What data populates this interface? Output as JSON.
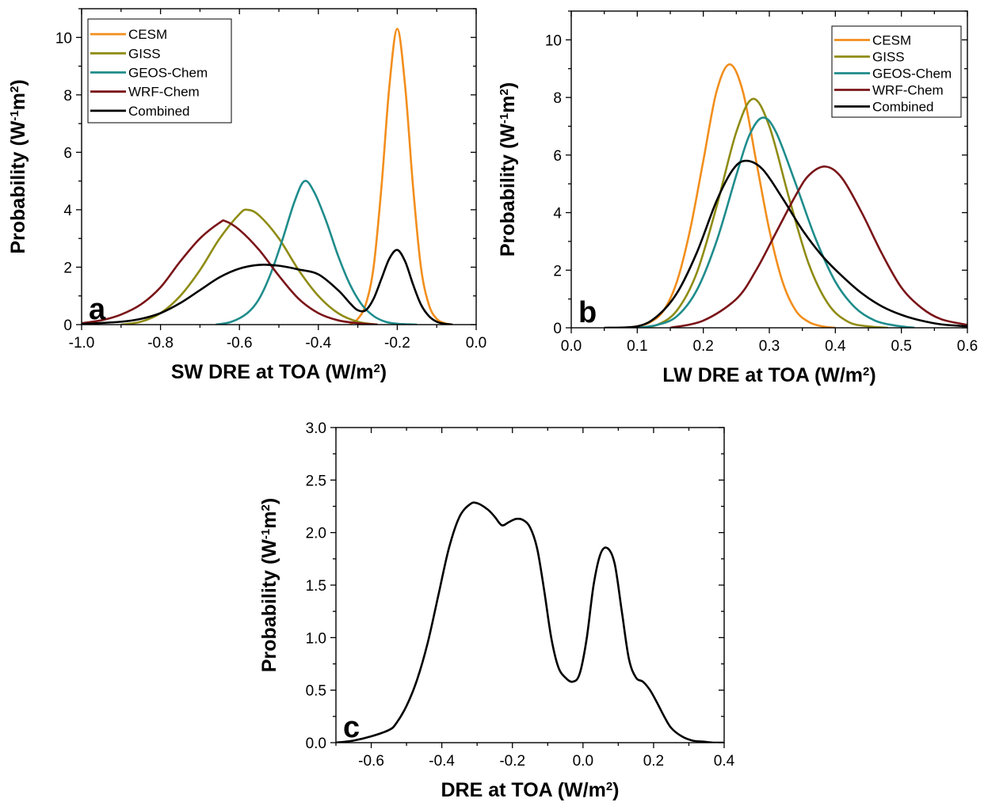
{
  "chart_data": [
    {
      "type": "line",
      "panel_label": "a",
      "xlabel": "SW DRE at TOA (W/m",
      "xlabel_sup": "2",
      "xlabel_end": ")",
      "ylabel": "Probability (W",
      "ylabel_sup1": "-1",
      "ylabel_mid": "m",
      "ylabel_sup2": "2",
      "ylabel_end": ")",
      "xlim": [
        -1.0,
        0.0
      ],
      "ylim": [
        0,
        11
      ],
      "xticks": [
        -1.0,
        -0.8,
        -0.6,
        -0.4,
        -0.2,
        0.0
      ],
      "xtick_labels": [
        "-1.0",
        "-0.8",
        "-0.6",
        "-0.4",
        "-0.2",
        "0.0"
      ],
      "yticks": [
        0,
        2,
        4,
        6,
        8,
        10
      ],
      "ytick_labels": [
        "0",
        "2",
        "4",
        "6",
        "8",
        "10"
      ],
      "legend_position": "top-left",
      "series": [
        {
          "name": "CESM",
          "color": "#f28e1c",
          "x": [
            -0.32,
            -0.3,
            -0.28,
            -0.26,
            -0.24,
            -0.22,
            -0.2,
            -0.18,
            -0.16,
            -0.14,
            -0.12,
            -0.1,
            -0.08,
            -0.06
          ],
          "y": [
            0,
            0.2,
            0.7,
            2.0,
            4.8,
            8.3,
            10.3,
            8.3,
            4.8,
            2.0,
            0.7,
            0.2,
            0.05,
            0
          ]
        },
        {
          "name": "GISS",
          "color": "#8f8c14",
          "x": [
            -0.9,
            -0.85,
            -0.8,
            -0.75,
            -0.7,
            -0.65,
            -0.6,
            -0.58,
            -0.55,
            -0.5,
            -0.45,
            -0.4,
            -0.35,
            -0.3,
            -0.25
          ],
          "y": [
            0,
            0.1,
            0.4,
            1.0,
            1.9,
            3.0,
            3.85,
            4.0,
            3.8,
            3.0,
            1.9,
            1.0,
            0.4,
            0.1,
            0
          ]
        },
        {
          "name": "GEOS-Chem",
          "color": "#1f8c8c",
          "x": [
            -0.66,
            -0.62,
            -0.58,
            -0.55,
            -0.52,
            -0.49,
            -0.46,
            -0.435,
            -0.41,
            -0.38,
            -0.35,
            -0.32,
            -0.29,
            -0.26,
            -0.23,
            -0.2,
            -0.17,
            -0.15
          ],
          "y": [
            0,
            0.1,
            0.4,
            0.9,
            1.8,
            3.0,
            4.3,
            5.0,
            4.6,
            3.6,
            2.4,
            1.4,
            0.7,
            0.3,
            0.1,
            0.03,
            0.01,
            0
          ]
        },
        {
          "name": "WRF-Chem",
          "color": "#7a1418",
          "x": [
            -1.0,
            -0.95,
            -0.9,
            -0.85,
            -0.8,
            -0.75,
            -0.7,
            -0.65,
            -0.635,
            -0.6,
            -0.55,
            -0.5,
            -0.45,
            -0.4,
            -0.35,
            -0.3,
            -0.25
          ],
          "y": [
            0.05,
            0.15,
            0.35,
            0.7,
            1.3,
            2.2,
            3.0,
            3.55,
            3.6,
            3.3,
            2.6,
            1.7,
            0.9,
            0.4,
            0.15,
            0.05,
            0
          ]
        },
        {
          "name": "Combined",
          "color": "#000000",
          "x": [
            -1.0,
            -0.9,
            -0.85,
            -0.8,
            -0.75,
            -0.7,
            -0.65,
            -0.6,
            -0.55,
            -0.5,
            -0.45,
            -0.4,
            -0.35,
            -0.32,
            -0.3,
            -0.28,
            -0.26,
            -0.24,
            -0.22,
            -0.2,
            -0.18,
            -0.16,
            -0.14,
            -0.12,
            -0.1,
            -0.08,
            -0.06
          ],
          "y": [
            0.02,
            0.1,
            0.2,
            0.4,
            0.75,
            1.2,
            1.65,
            1.95,
            2.08,
            2.05,
            1.92,
            1.75,
            1.2,
            0.75,
            0.5,
            0.5,
            0.9,
            1.6,
            2.3,
            2.6,
            2.2,
            1.4,
            0.7,
            0.3,
            0.1,
            0.03,
            0
          ]
        }
      ]
    },
    {
      "type": "line",
      "panel_label": "b",
      "xlabel": "LW DRE at TOA (W/m",
      "xlabel_sup": "2",
      "xlabel_end": ")",
      "ylabel": "Probability (W",
      "ylabel_sup1": "-1",
      "ylabel_mid": "m",
      "ylabel_sup2": "2",
      "ylabel_end": ")",
      "xlim": [
        0.0,
        0.6
      ],
      "ylim": [
        0,
        11
      ],
      "xticks": [
        0.0,
        0.1,
        0.2,
        0.3,
        0.4,
        0.5,
        0.6
      ],
      "xtick_labels": [
        "0.0",
        "0.1",
        "0.2",
        "0.3",
        "0.4",
        "0.5",
        "0.6"
      ],
      "yticks": [
        0,
        2,
        4,
        6,
        8,
        10
      ],
      "ytick_labels": [
        "0",
        "2",
        "4",
        "6",
        "8",
        "10"
      ],
      "legend_position": "top-right",
      "series": [
        {
          "name": "CESM",
          "color": "#f28e1c",
          "x": [
            0.08,
            0.1,
            0.12,
            0.14,
            0.16,
            0.18,
            0.2,
            0.22,
            0.24,
            0.26,
            0.28,
            0.3,
            0.32,
            0.34,
            0.36,
            0.38,
            0.4
          ],
          "y": [
            0,
            0.05,
            0.2,
            0.6,
            1.6,
            3.4,
            5.8,
            8.2,
            9.15,
            8.2,
            5.8,
            3.4,
            1.6,
            0.6,
            0.2,
            0.05,
            0
          ]
        },
        {
          "name": "GISS",
          "color": "#8f8c14",
          "x": [
            0.1,
            0.13,
            0.16,
            0.19,
            0.22,
            0.25,
            0.275,
            0.3,
            0.33,
            0.36,
            0.39,
            0.42,
            0.45,
            0.48
          ],
          "y": [
            0,
            0.1,
            0.6,
            1.9,
            4.2,
            6.8,
            7.95,
            7.0,
            4.5,
            2.2,
            0.8,
            0.2,
            0.05,
            0
          ]
        },
        {
          "name": "GEOS-Chem",
          "color": "#1f8c8c",
          "x": [
            0.1,
            0.13,
            0.16,
            0.19,
            0.22,
            0.25,
            0.27,
            0.29,
            0.31,
            0.34,
            0.37,
            0.4,
            0.43,
            0.46,
            0.49,
            0.52
          ],
          "y": [
            0,
            0.1,
            0.4,
            1.3,
            3.0,
            5.3,
            6.7,
            7.3,
            6.8,
            5.0,
            3.1,
            1.6,
            0.7,
            0.25,
            0.08,
            0
          ]
        },
        {
          "name": "WRF-Chem",
          "color": "#7a1418",
          "x": [
            0.15,
            0.2,
            0.25,
            0.28,
            0.31,
            0.34,
            0.36,
            0.385,
            0.41,
            0.44,
            0.47,
            0.5,
            0.53,
            0.56,
            0.6
          ],
          "y": [
            0,
            0.25,
            1.0,
            2.0,
            3.3,
            4.6,
            5.3,
            5.6,
            5.2,
            4.0,
            2.6,
            1.4,
            0.7,
            0.3,
            0.1
          ]
        },
        {
          "name": "Combined",
          "color": "#000000",
          "x": [
            0.05,
            0.1,
            0.13,
            0.16,
            0.19,
            0.22,
            0.245,
            0.265,
            0.29,
            0.32,
            0.35,
            0.38,
            0.41,
            0.44,
            0.47,
            0.5,
            0.53,
            0.56,
            0.6
          ],
          "y": [
            0,
            0.05,
            0.4,
            1.2,
            2.6,
            4.4,
            5.5,
            5.8,
            5.5,
            4.5,
            3.4,
            2.5,
            1.8,
            1.2,
            0.75,
            0.45,
            0.25,
            0.12,
            0.05
          ]
        }
      ]
    },
    {
      "type": "line",
      "panel_label": "c",
      "xlabel": "DRE at TOA (W/m",
      "xlabel_sup": "2",
      "xlabel_end": ")",
      "ylabel": "Probability (W",
      "ylabel_sup1": "-1",
      "ylabel_mid": "m",
      "ylabel_sup2": "2",
      "ylabel_end": ")",
      "xlim": [
        -0.7,
        0.4
      ],
      "ylim": [
        0,
        3.0
      ],
      "xticks": [
        -0.6,
        -0.4,
        -0.2,
        0.0,
        0.2,
        0.4
      ],
      "xtick_labels": [
        "-0.6",
        "-0.4",
        "-0.2",
        "0.0",
        "0.2",
        "0.4"
      ],
      "yticks": [
        0.0,
        0.5,
        1.0,
        1.5,
        2.0,
        2.5,
        3.0
      ],
      "ytick_labels": [
        "0.0",
        "0.5",
        "1.0",
        "1.5",
        "2.0",
        "2.5",
        "3.0"
      ],
      "legend_position": "none",
      "series": [
        {
          "color": "#000000",
          "x": [
            -0.7,
            -0.65,
            -0.6,
            -0.55,
            -0.53,
            -0.5,
            -0.47,
            -0.44,
            -0.41,
            -0.38,
            -0.35,
            -0.32,
            -0.3,
            -0.27,
            -0.25,
            -0.23,
            -0.21,
            -0.19,
            -0.17,
            -0.15,
            -0.13,
            -0.11,
            -0.09,
            -0.07,
            -0.05,
            -0.03,
            -0.01,
            0.01,
            0.03,
            0.05,
            0.07,
            0.09,
            0.11,
            0.13,
            0.15,
            0.17,
            0.19,
            0.21,
            0.23,
            0.25,
            0.28,
            0.31,
            0.34,
            0.37,
            0.4
          ],
          "y": [
            0,
            0.02,
            0.06,
            0.12,
            0.18,
            0.35,
            0.6,
            0.95,
            1.4,
            1.85,
            2.15,
            2.27,
            2.28,
            2.22,
            2.15,
            2.07,
            2.1,
            2.13,
            2.12,
            2.05,
            1.85,
            1.45,
            1.0,
            0.72,
            0.62,
            0.58,
            0.65,
            0.98,
            1.5,
            1.8,
            1.85,
            1.7,
            1.25,
            0.8,
            0.62,
            0.58,
            0.5,
            0.38,
            0.25,
            0.14,
            0.06,
            0.02,
            0.01,
            0,
            0
          ]
        }
      ]
    }
  ]
}
